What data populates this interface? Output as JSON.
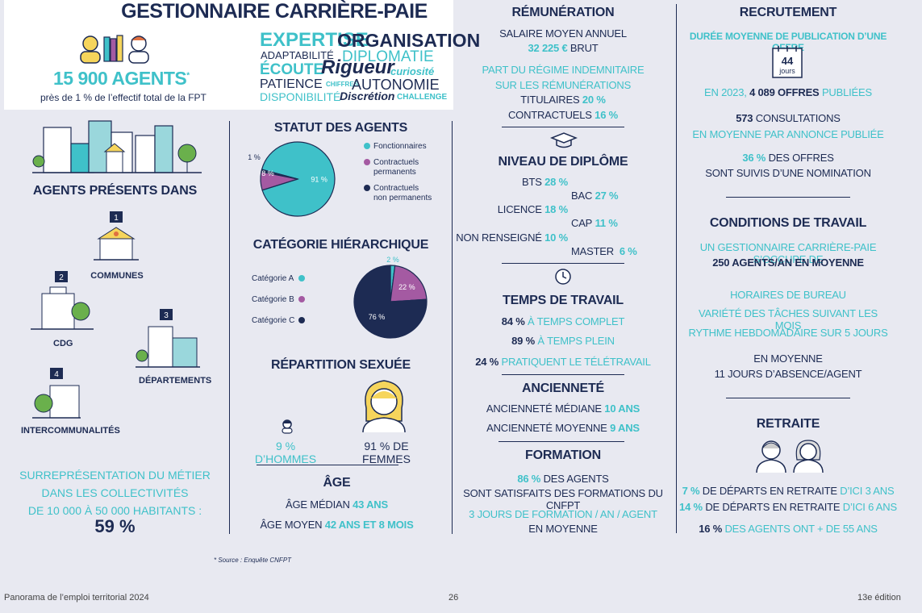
{
  "header": {
    "title": "GESTIONNAIRE CARRIÈRE-PAIE",
    "agents_count": "15 900 AGENTS",
    "agents_star": "*",
    "agents_sub": "près de 1 % de l’effectif total de la FPT",
    "words": [
      "EXPERTISE",
      "ORGANISATION",
      "ADAPTABILITÉ",
      "DIPLOMATIE",
      "ÉCOUTE",
      "Rigueur",
      "curiosité",
      "PATIENCE",
      "CHIFFRES",
      "AUTONOMIE",
      "DISPONIBILITÉ",
      "Discrétion",
      "CHALLENGE"
    ]
  },
  "presence": {
    "title": "AGENTS PRÉSENTS DANS",
    "items": [
      {
        "rank": "1",
        "label": "COMMUNES"
      },
      {
        "rank": "2",
        "label": "CDG"
      },
      {
        "rank": "3",
        "label": "DÉPARTEMENTS"
      },
      {
        "rank": "4",
        "label": "INTERCOMMUNALITÉS"
      }
    ],
    "over_lines": [
      "SURREPRÉSENTATION DU MÉTIER",
      "DANS LES COLLECTIVITÉS",
      "DE 10 000 À 50 000 HABITANTS :"
    ],
    "over_value": "59 %"
  },
  "statut": {
    "title": "STATUT DES AGENTS",
    "slices": [
      {
        "label": "Fonctionnaires",
        "value": 91,
        "display": "91 %",
        "color": "#3fc1c9"
      },
      {
        "label": "Contractuels permanents",
        "value": 8,
        "display": "8 %",
        "color": "#a45aa2"
      },
      {
        "label": "Contractuels non permanents",
        "value": 1,
        "display": "1 %",
        "color": "#1d2b53"
      }
    ],
    "legend_lines": [
      [
        "Fonctionnaires"
      ],
      [
        "Contractuels",
        "permanents"
      ],
      [
        "Contractuels",
        "non permanents"
      ]
    ]
  },
  "categorie": {
    "title": "CATÉGORIE HIÉRARCHIQUE",
    "slices": [
      {
        "label": "Catégorie A",
        "value": 2,
        "display": "2 %",
        "color": "#3fc1c9"
      },
      {
        "label": "Catégorie B",
        "value": 22,
        "display": "22 %",
        "color": "#a45aa2"
      },
      {
        "label": "Catégorie C",
        "value": 76,
        "display": "76 %",
        "color": "#1d2b53"
      }
    ]
  },
  "sexe": {
    "title": "RÉPARTITION SEXUÉE",
    "hommes": "9 % D’HOMMES",
    "femmes": "91 % DE FEMMES",
    "hommes_value": 9,
    "femmes_value": 91
  },
  "age": {
    "title": "ÂGE",
    "median_label": "ÂGE MÉDIAN",
    "median_value": "43 ANS",
    "moyen_label": "ÂGE MOYEN",
    "moyen_value": "42 ANS ET 8 MOIS"
  },
  "remuneration": {
    "title": "RÉMUNÉRATION",
    "salaire_label": "SALAIRE MOYEN ANNUEL",
    "salaire_value": "32 225 €",
    "salaire_unit": "BRUT",
    "part_lines": [
      "PART DU RÉGIME INDEMNITAIRE",
      "SUR LES RÉMUNÉRATIONS"
    ],
    "titulaires_label": "TITULAIRES",
    "titulaires_value": "20 %",
    "contractuels_label": "CONTRACTUELS",
    "contractuels_value": "16 %"
  },
  "diplome": {
    "title": "NIVEAU DE DIPLÔME",
    "left": [
      {
        "label": "BTS",
        "value": "28 %"
      },
      {
        "label": "LICENCE",
        "value": "18 %"
      },
      {
        "label": "NON RENSEIGNÉ",
        "value": "10 %"
      }
    ],
    "right": [
      {
        "label": "BAC",
        "value": "27 %"
      },
      {
        "label": "CAP",
        "value": "11 %"
      },
      {
        "label": "MASTER",
        "value": "6 %"
      }
    ]
  },
  "temps": {
    "title": "TEMPS DE TRAVAIL",
    "rows": [
      {
        "value": "84 %",
        "label": "À TEMPS COMPLET"
      },
      {
        "value": "89 %",
        "label": "À TEMPS PLEIN"
      },
      {
        "value": "24 %",
        "label": "PRATIQUENT LE TÉLÉTRAVAIL"
      }
    ]
  },
  "anciennete": {
    "title": "ANCIENNETÉ",
    "median_label": "ANCIENNETÉ MÉDIANE",
    "median_value": "10 ANS",
    "moyenne_label": "ANCIENNETÉ MOYENNE",
    "moyenne_value": "9 ANS"
  },
  "formation": {
    "title": "FORMATION",
    "satisf_value": "86 %",
    "satisf_rest": "DES AGENTS",
    "satisf_line2": "SONT SATISFAITS DES FORMATIONS DU CNFPT",
    "jours_line1": "3 JOURS DE FORMATION / AN / AGENT",
    "jours_line2": "EN MOYENNE"
  },
  "recrutement": {
    "title": "RECRUTEMENT",
    "duree_label": "DURÉE MOYENNE DE PUBLICATION D’UNE OFFRE",
    "cal_value": "44",
    "cal_unit": "jours",
    "offres_pre": "EN 2023,",
    "offres_value": "4 089 OFFRES",
    "offres_post": "PUBLIÉES",
    "consult_value": "573",
    "consult_label": "CONSULTATIONS",
    "consult_line2": "EN MOYENNE PAR ANNONCE PUBLIÉE",
    "nomination_value": "36 %",
    "nomination_label": "DES OFFRES",
    "nomination_line2": "SONT SUIVIS D’UNE NOMINATION"
  },
  "conditions": {
    "title": "CONDITIONS DE TRAVAIL",
    "line1": "UN GESTIONNAIRE CARRIÈRE-PAIE S’OCCUPE DE",
    "line2": "250 AGENTS/AN EN MOYENNE",
    "list": [
      "HORAIRES DE BUREAU",
      "VARIÉTÉ DES TÂCHES SUIVANT LES MOIS",
      "RYTHME HEBDOMADAIRE SUR 5 JOURS"
    ],
    "absence1": "EN MOYENNE",
    "absence2": "11 JOURS D’ABSENCE/AGENT"
  },
  "retraite": {
    "title": "RETRAITE",
    "rows": [
      {
        "value": "7 %",
        "mid": "DE DÉPARTS EN RETRAITE",
        "tail": "D’ICI 3 ANS"
      },
      {
        "value": "14 %",
        "mid": "DE DÉPARTS EN RETRAITE",
        "tail": "D’ICI 6 ANS"
      },
      {
        "value": "16 %",
        "mid": "DES AGENTS ONT + DE 55 ANS",
        "tail": ""
      }
    ]
  },
  "footer": {
    "source": "* Source : Enquête CNFPT",
    "left": "Panorama de l’emploi territorial 2024",
    "page": "26",
    "edition": "13e édition"
  }
}
